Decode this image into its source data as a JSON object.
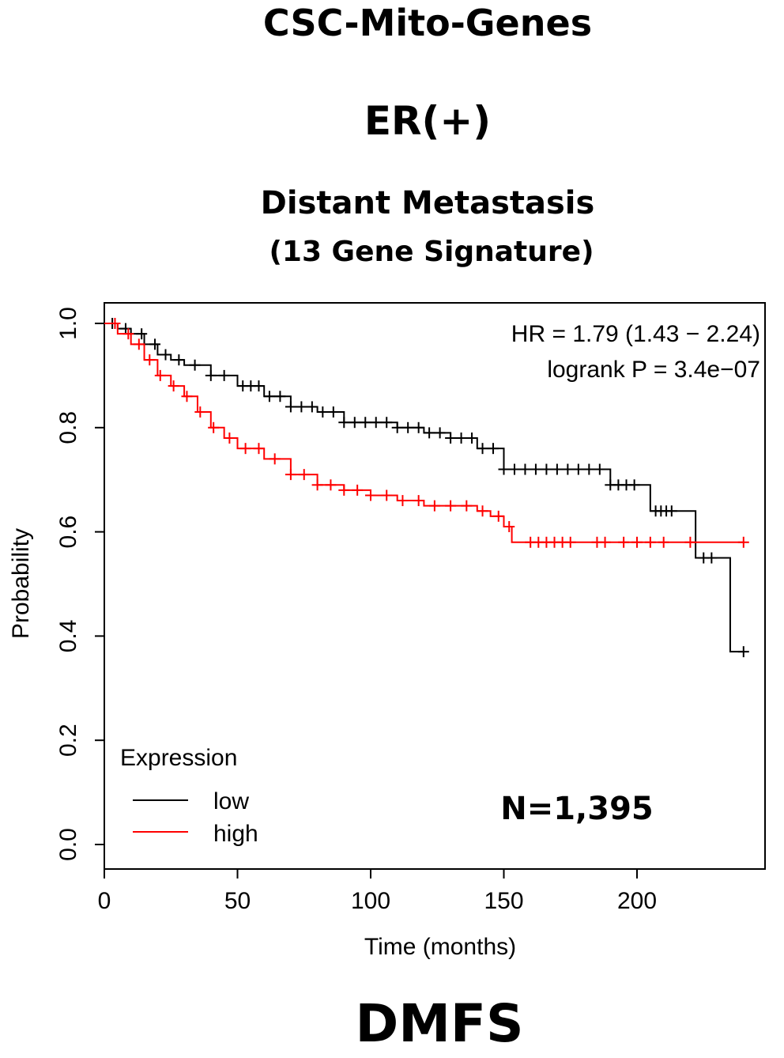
{
  "headings": {
    "main": "CSC-Mito-Genes",
    "subgroup": "ER(+)",
    "endpoint": "Distant Metastasis",
    "signature": "(13 Gene Signature)",
    "footer": "DMFS"
  },
  "chart_data": {
    "type": "line",
    "subtype": "kaplan-meier",
    "xlabel": "Time (months)",
    "ylabel": "Probability",
    "xlim": [
      0,
      240
    ],
    "ylim": [
      0,
      1
    ],
    "x_ticks": [
      0,
      50,
      100,
      150,
      200
    ],
    "y_ticks": [
      0.0,
      0.2,
      0.4,
      0.6,
      0.8,
      1.0
    ],
    "x_tick_labels": [
      "0",
      "50",
      "100",
      "150",
      "200"
    ],
    "y_tick_labels": [
      "0.0",
      "0.2",
      "0.4",
      "0.6",
      "0.8",
      "1.0"
    ],
    "hr_text": "HR = 1.79 (1.43 − 2.24)",
    "logrank_text": "logrank P = 3.4e−07",
    "n_text": "N=1,395",
    "legend": {
      "title": "Expression",
      "position": "bottom-left",
      "entries": [
        {
          "label": "low",
          "color": "#000000"
        },
        {
          "label": "high",
          "color": "#ff0000"
        }
      ]
    },
    "series": [
      {
        "name": "low",
        "color": "#000000",
        "x": [
          0,
          5,
          10,
          15,
          20,
          25,
          30,
          40,
          50,
          60,
          70,
          80,
          90,
          100,
          110,
          120,
          130,
          140,
          150,
          160,
          180,
          190,
          205,
          215,
          222,
          235,
          240
        ],
        "y": [
          1.0,
          0.99,
          0.98,
          0.96,
          0.94,
          0.93,
          0.92,
          0.9,
          0.88,
          0.86,
          0.84,
          0.83,
          0.81,
          0.81,
          0.8,
          0.79,
          0.78,
          0.76,
          0.72,
          0.72,
          0.72,
          0.69,
          0.64,
          0.64,
          0.55,
          0.37,
          0.37
        ],
        "censor_x": [
          3,
          8,
          14,
          19,
          23,
          28,
          34,
          40,
          45,
          52,
          55,
          58,
          62,
          66,
          70,
          74,
          78,
          82,
          86,
          90,
          94,
          98,
          102,
          106,
          110,
          114,
          118,
          122,
          126,
          130,
          134,
          138,
          142,
          146,
          150,
          154,
          158,
          162,
          166,
          170,
          174,
          178,
          182,
          186,
          190,
          193,
          196,
          199,
          207,
          209,
          211,
          213,
          225,
          228,
          240
        ]
      },
      {
        "name": "high",
        "color": "#ff0000",
        "x": [
          0,
          5,
          10,
          15,
          20,
          25,
          30,
          35,
          40,
          45,
          50,
          60,
          70,
          80,
          90,
          100,
          110,
          120,
          130,
          140,
          145,
          150,
          153,
          170,
          200,
          240
        ],
        "y": [
          1.0,
          0.98,
          0.96,
          0.93,
          0.9,
          0.88,
          0.86,
          0.83,
          0.8,
          0.78,
          0.76,
          0.74,
          0.71,
          0.69,
          0.68,
          0.67,
          0.66,
          0.65,
          0.65,
          0.64,
          0.63,
          0.61,
          0.58,
          0.58,
          0.58,
          0.58
        ],
        "censor_x": [
          4,
          9,
          13,
          17,
          21,
          26,
          31,
          36,
          41,
          47,
          53,
          58,
          64,
          70,
          75,
          80,
          85,
          90,
          95,
          100,
          106,
          112,
          118,
          124,
          130,
          136,
          142,
          148,
          152,
          160,
          163,
          166,
          169,
          172,
          175,
          185,
          188,
          195,
          200,
          205,
          210,
          220,
          240
        ]
      }
    ]
  }
}
